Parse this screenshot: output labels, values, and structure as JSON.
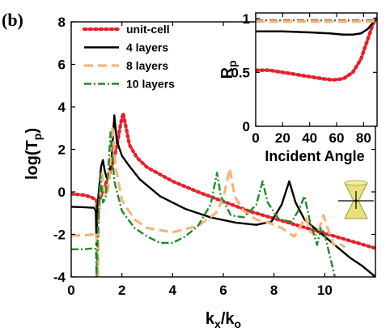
{
  "panel_label": "(b)",
  "chart_data": [
    {
      "type": "line",
      "role": "main",
      "xlabel": "k",
      "xlabel_sub": "x",
      "xlabel_mid": "/k",
      "xlabel_sub2": "o",
      "ylabel": "log(T",
      "ylabel_sub": "p",
      "ylabel_end": ")",
      "xlim": [
        0,
        12
      ],
      "ylim": [
        -4,
        8
      ],
      "xticks": [
        0,
        2,
        4,
        6,
        8,
        10
      ],
      "yticks": [
        -4,
        -2,
        0,
        2,
        4,
        6,
        8
      ],
      "grid": false,
      "legend_position": "top-left",
      "series": [
        {
          "name": "unit-cell",
          "color": "#e8202a",
          "style": "dotted",
          "points": [
            [
              0,
              -0.1
            ],
            [
              0.5,
              -0.15
            ],
            [
              0.8,
              -0.25
            ],
            [
              1.0,
              -0.4
            ],
            [
              1.05,
              -1.2
            ],
            [
              1.1,
              -0.4
            ],
            [
              1.3,
              0.2
            ],
            [
              1.5,
              0.8
            ],
            [
              1.7,
              1.6
            ],
            [
              1.85,
              2.5
            ],
            [
              1.95,
              3.2
            ],
            [
              2.05,
              3.7
            ],
            [
              2.15,
              3.1
            ],
            [
              2.3,
              2.2
            ],
            [
              2.6,
              1.6
            ],
            [
              3.0,
              1.15
            ],
            [
              4.0,
              0.5
            ],
            [
              5.0,
              0.0
            ],
            [
              6.0,
              -0.45
            ],
            [
              7.0,
              -0.9
            ],
            [
              8.0,
              -1.25
            ],
            [
              9.0,
              -1.6
            ],
            [
              10.0,
              -1.95
            ],
            [
              11.0,
              -2.3
            ],
            [
              12.0,
              -2.65
            ]
          ]
        },
        {
          "name": "4 layers",
          "color": "#000000",
          "style": "solid",
          "points": [
            [
              0,
              -0.7
            ],
            [
              0.5,
              -0.72
            ],
            [
              0.9,
              -0.75
            ],
            [
              0.97,
              -0.9
            ],
            [
              1.0,
              -2.5
            ],
            [
              1.03,
              -0.8
            ],
            [
              1.1,
              0.2
            ],
            [
              1.18,
              1.2
            ],
            [
              1.25,
              1.5
            ],
            [
              1.32,
              1.0
            ],
            [
              1.4,
              0.65
            ],
            [
              1.5,
              0.75
            ],
            [
              1.6,
              1.7
            ],
            [
              1.7,
              3.6
            ],
            [
              1.8,
              2.4
            ],
            [
              2.0,
              1.7
            ],
            [
              2.3,
              1.2
            ],
            [
              2.7,
              0.6
            ],
            [
              3.5,
              -0.2
            ],
            [
              4.5,
              -0.8
            ],
            [
              5.5,
              -1.2
            ],
            [
              6.5,
              -1.45
            ],
            [
              7.3,
              -1.55
            ],
            [
              7.9,
              -1.4
            ],
            [
              8.3,
              -0.6
            ],
            [
              8.6,
              0.5
            ],
            [
              8.85,
              -0.5
            ],
            [
              9.2,
              -1.3
            ],
            [
              9.8,
              -1.9
            ],
            [
              10.5,
              -2.6
            ],
            [
              11.0,
              -3.1
            ],
            [
              11.5,
              -3.5
            ],
            [
              12.0,
              -4.0
            ]
          ]
        },
        {
          "name": "8 layers",
          "color": "#f5b57a",
          "style": "dashed",
          "points": [
            [
              0,
              -2.05
            ],
            [
              0.5,
              -2.05
            ],
            [
              0.9,
              -2.0
            ],
            [
              1.0,
              -1.9
            ],
            [
              1.05,
              -4.0
            ],
            [
              1.1,
              -1.0
            ],
            [
              1.2,
              1.0
            ],
            [
              1.3,
              0.1
            ],
            [
              1.4,
              -0.2
            ],
            [
              1.5,
              0.5
            ],
            [
              1.62,
              3.1
            ],
            [
              1.75,
              1.2
            ],
            [
              2.0,
              -0.4
            ],
            [
              2.5,
              -1.3
            ],
            [
              3.0,
              -1.7
            ],
            [
              4.0,
              -1.9
            ],
            [
              5.0,
              -1.6
            ],
            [
              5.7,
              -1.0
            ],
            [
              6.0,
              -0.3
            ],
            [
              6.25,
              1.1
            ],
            [
              6.45,
              -0.2
            ],
            [
              6.8,
              -0.9
            ],
            [
              7.3,
              -1.3
            ],
            [
              7.8,
              -1.45
            ],
            [
              8.3,
              -1.7
            ],
            [
              8.8,
              -2.1
            ],
            [
              9.1,
              -1.5
            ],
            [
              9.25,
              -1.2
            ],
            [
              9.45,
              -1.9
            ],
            [
              9.7,
              -2.05
            ],
            [
              9.95,
              -1.1
            ],
            [
              10.2,
              -2.0
            ],
            [
              10.35,
              -2.5
            ],
            [
              10.55,
              -2.4
            ],
            [
              10.8,
              -2.6
            ]
          ]
        },
        {
          "name": "10 layers",
          "color": "#1e8a2a",
          "style": "dashdot",
          "points": [
            [
              0,
              -2.7
            ],
            [
              0.5,
              -2.7
            ],
            [
              0.9,
              -2.65
            ],
            [
              0.98,
              -2.7
            ],
            [
              1.0,
              -4.0
            ],
            [
              1.08,
              -1.0
            ],
            [
              1.15,
              0.8
            ],
            [
              1.25,
              -0.5
            ],
            [
              1.35,
              -0.3
            ],
            [
              1.45,
              0.8
            ],
            [
              1.55,
              2.8
            ],
            [
              1.7,
              0.5
            ],
            [
              2.0,
              -0.9
            ],
            [
              2.5,
              -1.7
            ],
            [
              3.0,
              -2.1
            ],
            [
              3.5,
              -2.4
            ],
            [
              4.0,
              -2.4
            ],
            [
              4.5,
              -2.1
            ],
            [
              5.0,
              -1.6
            ],
            [
              5.5,
              -0.6
            ],
            [
              5.75,
              0.9
            ],
            [
              5.9,
              -0.2
            ],
            [
              6.3,
              -1.1
            ],
            [
              6.8,
              -1.2
            ],
            [
              7.3,
              -0.6
            ],
            [
              7.55,
              0.5
            ],
            [
              7.75,
              -0.5
            ],
            [
              8.2,
              -1.3
            ],
            [
              8.7,
              -1.4
            ],
            [
              9.0,
              -0.8
            ],
            [
              9.2,
              -0.2
            ],
            [
              9.4,
              -1.3
            ],
            [
              9.7,
              -2.5
            ],
            [
              9.85,
              -1.7
            ],
            [
              10.0,
              -2.0
            ],
            [
              10.2,
              -3.0
            ],
            [
              10.4,
              -4.0
            ]
          ]
        }
      ]
    },
    {
      "type": "line",
      "role": "inset",
      "xlabel": "Incident Angle",
      "ylabel": "R",
      "ylabel_sub": "p",
      "xlim": [
        0,
        90
      ],
      "ylim": [
        0,
        1.05
      ],
      "xticks": [
        0,
        20,
        40,
        60,
        80
      ],
      "yticks": [
        0,
        0.5,
        1
      ],
      "ytick_labels": [
        "0",
        "0.5",
        "1"
      ],
      "series": [
        {
          "color": "#e8202a",
          "style": "dotted",
          "points": [
            [
              0,
              0.52
            ],
            [
              10,
              0.52
            ],
            [
              20,
              0.5
            ],
            [
              30,
              0.48
            ],
            [
              40,
              0.46
            ],
            [
              50,
              0.44
            ],
            [
              57,
              0.43
            ],
            [
              65,
              0.44
            ],
            [
              72,
              0.5
            ],
            [
              78,
              0.62
            ],
            [
              83,
              0.8
            ],
            [
              87,
              0.95
            ],
            [
              90,
              1.0
            ]
          ]
        },
        {
          "color": "#000000",
          "style": "solid",
          "points": [
            [
              0,
              0.88
            ],
            [
              20,
              0.88
            ],
            [
              40,
              0.87
            ],
            [
              55,
              0.86
            ],
            [
              65,
              0.85
            ],
            [
              72,
              0.85
            ],
            [
              78,
              0.86
            ],
            [
              83,
              0.9
            ],
            [
              87,
              0.96
            ],
            [
              90,
              1.0
            ]
          ]
        },
        {
          "color": "#1e8a2a",
          "style": "dashdot",
          "points": [
            [
              0,
              0.98
            ],
            [
              30,
              0.98
            ],
            [
              60,
              0.98
            ],
            [
              85,
              0.98
            ],
            [
              90,
              0.99
            ]
          ]
        },
        {
          "color": "#f5b57a",
          "style": "dashed",
          "points": [
            [
              0,
              0.97
            ],
            [
              30,
              0.97
            ],
            [
              60,
              0.97
            ],
            [
              85,
              0.97
            ],
            [
              90,
              0.98
            ]
          ]
        }
      ]
    }
  ]
}
